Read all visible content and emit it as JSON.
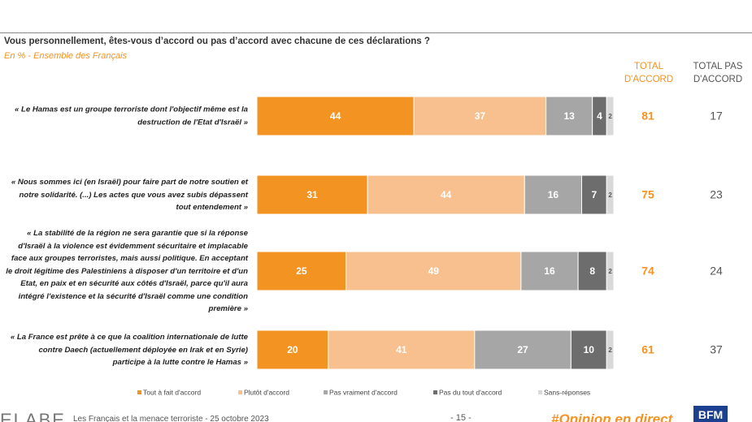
{
  "chart_data": {
    "type": "stacked-bar",
    "question": "Vous personnellement, êtes-vous d’accord ou pas d’accord avec chacune de ces déclarations ?",
    "subtitle": "En % - Ensemble des Français",
    "total_headers": [
      "TOTAL D'ACCORD",
      "TOTAL PAS D'ACCORD"
    ],
    "categories": [
      "« Le Hamas est un groupe terroriste dont l'objectif même est la destruction de l'Etat d'Israël »",
      "« Nous sommes ici (en Israël) pour faire part de notre soutien et notre solidarité. (...) Les actes que vous avez subis dépassent tout entendement »",
      "« La stabilité de la région ne sera garantie que si la réponse d'Israël à la violence est évidemment sécuritaire et implacable face aux groupes terroristes, mais aussi politique. En acceptant le droit légitime des Palestiniens à disposer d'un territoire et d'un Etat, en paix et en sécurité aux côtés d'Israël, parce qu'il aura intégré l'existence et la sécurité d'Israël comme une condition première »",
      "« La France est prête à ce que la coalition internationale de lutte contre Daech (actuellement déployée en Irak et en Syrie) participe à la lutte contre le Hamas »"
    ],
    "xlim": [
      0,
      100
    ],
    "series": [
      {
        "name": "Tout à fait d'accord",
        "color": "#f39322",
        "values": [
          44,
          31,
          25,
          20
        ]
      },
      {
        "name": "Plutôt d'accord",
        "color": "#f9c08f",
        "values": [
          37,
          44,
          49,
          41
        ]
      },
      {
        "name": "Pas vraiment d'accord",
        "color": "#a6a6a6",
        "values": [
          13,
          16,
          16,
          27
        ]
      },
      {
        "name": "Pas du tout d'accord",
        "color": "#6d6d6d",
        "values": [
          4,
          7,
          8,
          10
        ]
      },
      {
        "name": "Sans-réponses",
        "color": "#d9d9d9",
        "values": [
          2,
          2,
          2,
          2
        ]
      }
    ],
    "total_accord": [
      81,
      75,
      74,
      61
    ],
    "total_pas_accord": [
      17,
      23,
      24,
      37
    ],
    "footer": {
      "brand": "ELABE",
      "text": "Les Français et la menace terroriste - 25 octobre 2023",
      "page": "- 15 -",
      "hashtag": "#Opinion en direct",
      "logo": "BFM"
    }
  }
}
